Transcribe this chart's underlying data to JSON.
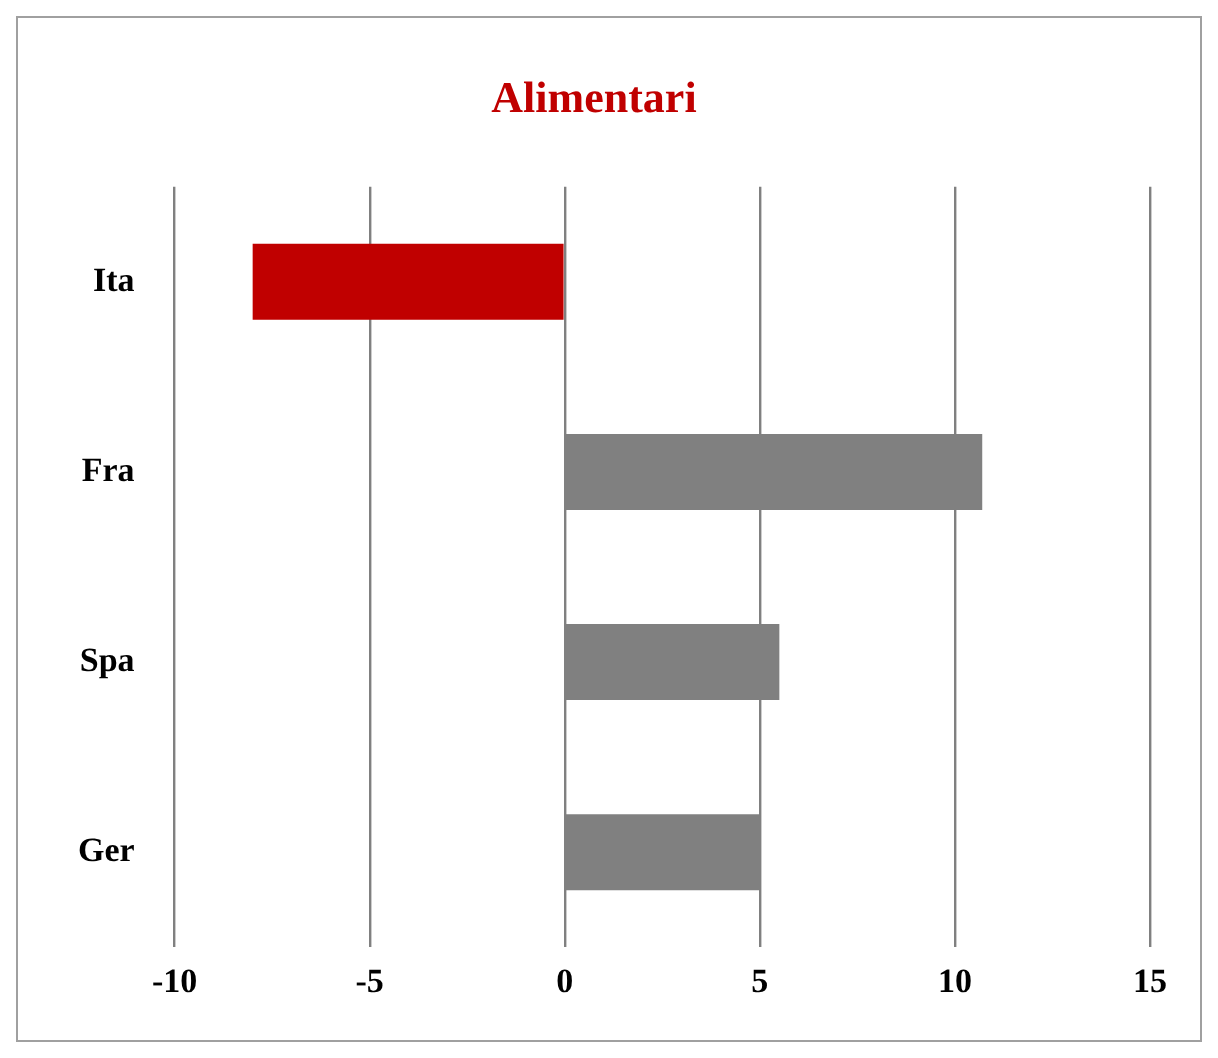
{
  "chart_data": {
    "type": "bar",
    "orientation": "horizontal",
    "title": "Alimentari",
    "categories": [
      "Ita",
      "Fra",
      "Spa",
      "Ger"
    ],
    "values": [
      -8.0,
      10.7,
      5.5,
      5.0
    ],
    "colors": [
      "#c00000",
      "#808080",
      "#808080",
      "#808080"
    ],
    "xlim": [
      -10,
      15
    ],
    "xticks": [
      -10,
      -5,
      0,
      5,
      10,
      15
    ],
    "grid": "x",
    "legend": false
  }
}
